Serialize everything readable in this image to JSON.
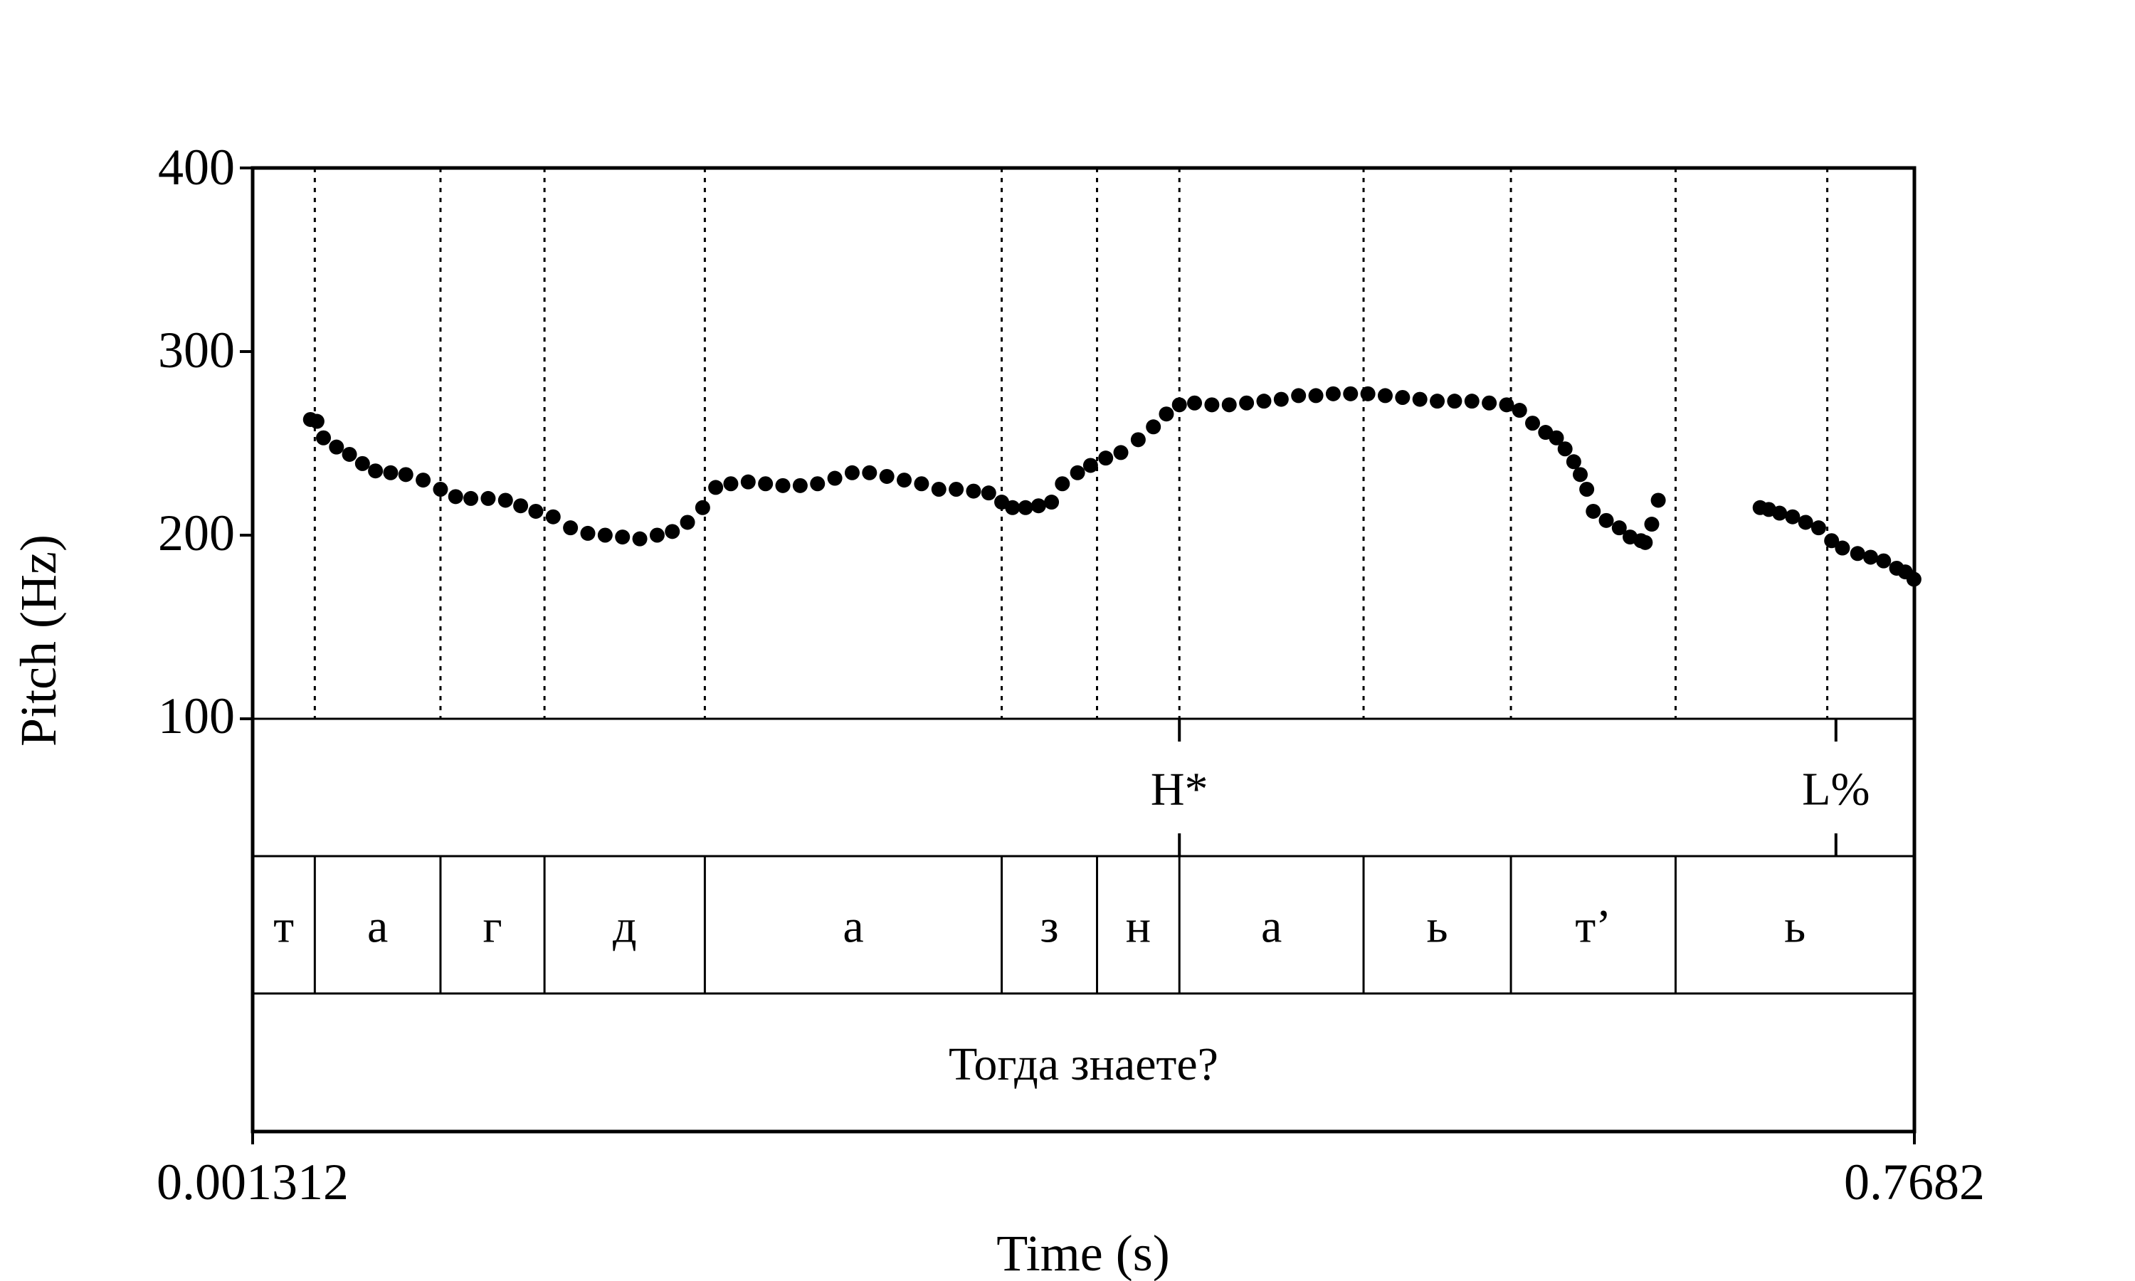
{
  "chart_data": {
    "type": "scatter",
    "xlabel": "Time (s)",
    "ylabel": "Pitch (Hz)",
    "xlim": [
      0.001312,
      0.7682
    ],
    "ylim": [
      100,
      400
    ],
    "x_tick_labels": [
      "0.001312",
      "0.7682"
    ],
    "y_ticks": [
      100,
      200,
      300,
      400
    ],
    "y_tick_labels": [
      "100",
      "200",
      "300",
      "400"
    ],
    "grid": false,
    "segment_boundaries": [
      0.03,
      0.088,
      0.136,
      0.21,
      0.347,
      0.391,
      0.429,
      0.514,
      0.582,
      0.658,
      0.728
    ],
    "series": [
      {
        "points": [
          [
            0.028,
            263
          ],
          [
            0.031,
            262
          ],
          [
            0.034,
            253
          ],
          [
            0.04,
            248
          ],
          [
            0.046,
            244
          ],
          [
            0.052,
            239
          ],
          [
            0.058,
            235
          ],
          [
            0.065,
            234
          ],
          [
            0.072,
            233
          ],
          [
            0.08,
            230
          ],
          [
            0.088,
            225
          ],
          [
            0.095,
            221
          ],
          [
            0.102,
            220
          ],
          [
            0.11,
            220
          ],
          [
            0.118,
            219
          ],
          [
            0.125,
            216
          ],
          [
            0.132,
            213
          ],
          [
            0.14,
            210
          ],
          [
            0.148,
            204
          ],
          [
            0.156,
            201
          ],
          [
            0.164,
            200
          ],
          [
            0.172,
            199
          ],
          [
            0.18,
            198
          ],
          [
            0.188,
            200
          ],
          [
            0.195,
            202
          ],
          [
            0.202,
            207
          ],
          [
            0.209,
            215
          ],
          [
            0.215,
            226
          ],
          [
            0.222,
            228
          ],
          [
            0.23,
            229
          ],
          [
            0.238,
            228
          ],
          [
            0.246,
            227
          ],
          [
            0.254,
            227
          ],
          [
            0.262,
            228
          ],
          [
            0.27,
            231
          ],
          [
            0.278,
            234
          ],
          [
            0.286,
            234
          ],
          [
            0.294,
            232
          ],
          [
            0.302,
            230
          ],
          [
            0.31,
            228
          ],
          [
            0.318,
            225
          ],
          [
            0.326,
            225
          ],
          [
            0.334,
            224
          ],
          [
            0.341,
            223
          ],
          [
            0.347,
            218
          ],
          [
            0.352,
            215
          ],
          [
            0.358,
            215
          ],
          [
            0.364,
            216
          ],
          [
            0.37,
            218
          ],
          [
            0.375,
            228
          ],
          [
            0.382,
            234
          ],
          [
            0.388,
            238
          ],
          [
            0.395,
            242
          ],
          [
            0.402,
            245
          ],
          [
            0.41,
            252
          ],
          [
            0.417,
            259
          ],
          [
            0.423,
            266
          ],
          [
            0.429,
            271
          ],
          [
            0.436,
            272
          ],
          [
            0.444,
            271
          ],
          [
            0.452,
            271
          ],
          [
            0.46,
            272
          ],
          [
            0.468,
            273
          ],
          [
            0.476,
            274
          ],
          [
            0.484,
            276
          ],
          [
            0.492,
            276
          ],
          [
            0.5,
            277
          ],
          [
            0.508,
            277
          ],
          [
            0.516,
            277
          ],
          [
            0.524,
            276
          ],
          [
            0.532,
            275
          ],
          [
            0.54,
            274
          ],
          [
            0.548,
            273
          ],
          [
            0.556,
            273
          ],
          [
            0.564,
            273
          ],
          [
            0.572,
            272
          ],
          [
            0.58,
            271
          ],
          [
            0.586,
            268
          ],
          [
            0.592,
            261
          ],
          [
            0.598,
            256
          ],
          [
            0.603,
            253
          ],
          [
            0.607,
            247
          ],
          [
            0.611,
            240
          ],
          [
            0.614,
            233
          ],
          [
            0.617,
            225
          ],
          [
            0.62,
            213
          ],
          [
            0.626,
            208
          ],
          [
            0.632,
            204
          ],
          [
            0.637,
            199
          ],
          [
            0.642,
            197
          ],
          [
            0.644,
            196
          ],
          [
            0.647,
            206
          ],
          [
            0.65,
            219
          ],
          [
            0.697,
            215
          ],
          [
            0.701,
            214
          ],
          [
            0.706,
            212
          ],
          [
            0.712,
            210
          ],
          [
            0.718,
            207
          ],
          [
            0.724,
            204
          ],
          [
            0.73,
            197
          ],
          [
            0.735,
            193
          ],
          [
            0.742,
            190
          ],
          [
            0.748,
            188
          ],
          [
            0.754,
            186
          ],
          [
            0.76,
            182
          ],
          [
            0.764,
            180
          ],
          [
            0.768,
            176
          ]
        ]
      }
    ],
    "tiers": [
      {
        "points": [
          {
            "time": 0.429,
            "label": "H*"
          },
          {
            "time": 0.732,
            "label": "L%"
          }
        ]
      },
      {
        "intervals": [
          {
            "start": 0.001312,
            "end": 0.03,
            "label": "т"
          },
          {
            "start": 0.03,
            "end": 0.088,
            "label": "а"
          },
          {
            "start": 0.088,
            "end": 0.136,
            "label": "г"
          },
          {
            "start": 0.136,
            "end": 0.21,
            "label": "д"
          },
          {
            "start": 0.21,
            "end": 0.347,
            "label": "а"
          },
          {
            "start": 0.347,
            "end": 0.391,
            "label": "з"
          },
          {
            "start": 0.391,
            "end": 0.429,
            "label": "н"
          },
          {
            "start": 0.429,
            "end": 0.514,
            "label": "а"
          },
          {
            "start": 0.514,
            "end": 0.582,
            "label": "ь"
          },
          {
            "start": 0.582,
            "end": 0.658,
            "label": "т’"
          },
          {
            "start": 0.658,
            "end": 0.7682,
            "label": "ь"
          }
        ]
      },
      {
        "intervals": [
          {
            "start": 0.001312,
            "end": 0.7682,
            "label": "Тогда знаете?"
          }
        ]
      }
    ]
  }
}
